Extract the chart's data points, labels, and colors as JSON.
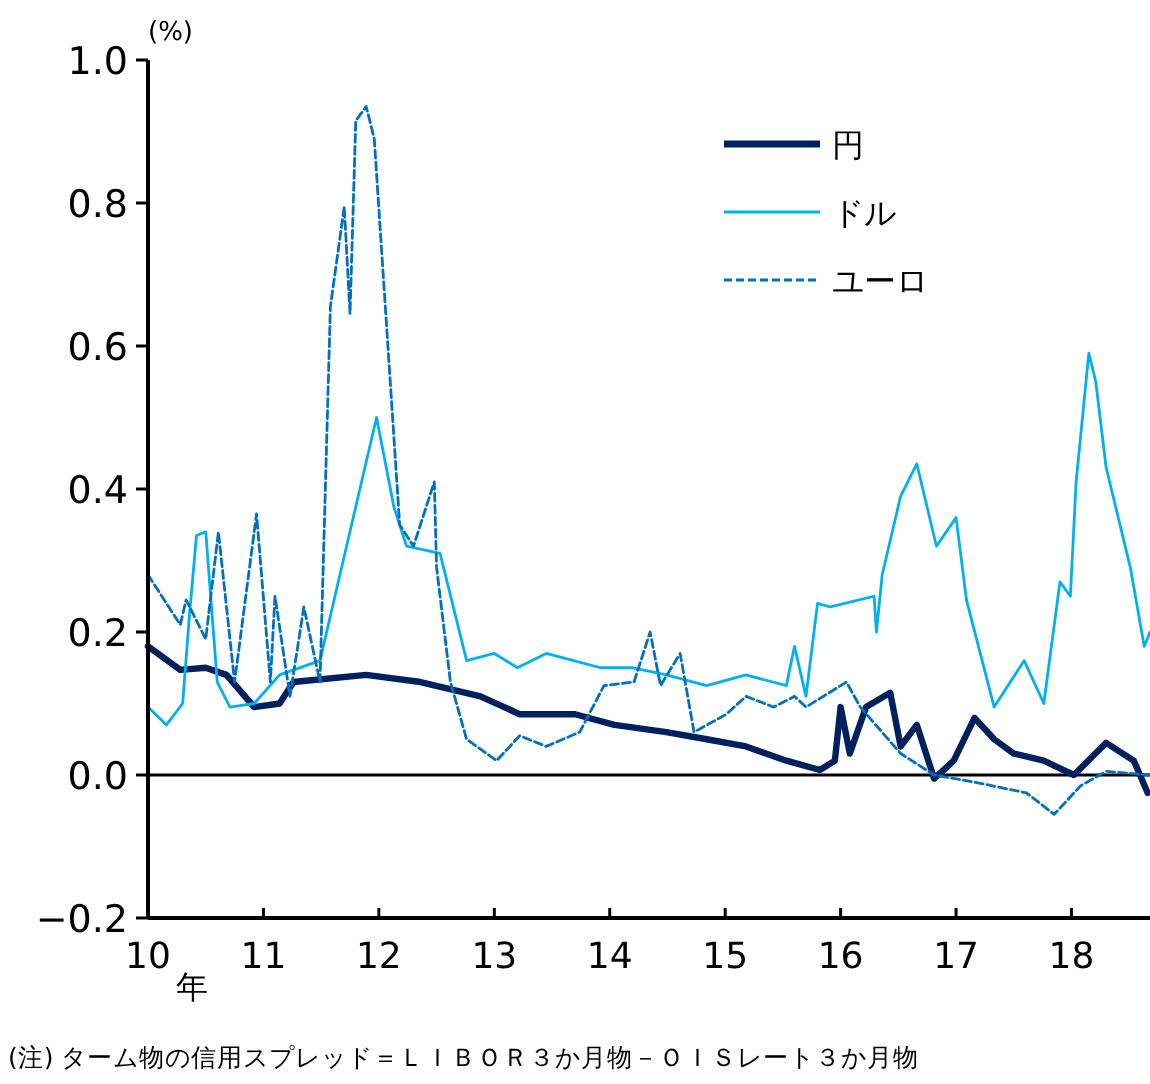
{
  "chart_data": {
    "type": "line",
    "ylabel": "(%)",
    "xlabel": "年",
    "xlim": [
      10,
      18.68
    ],
    "ylim": [
      -0.2,
      1.0
    ],
    "xticks": [
      10,
      11,
      12,
      13,
      14,
      15,
      16,
      17,
      18
    ],
    "yticks": [
      {
        "value": -0.2,
        "label": "−0.2"
      },
      {
        "value": 0,
        "label": "0.0"
      },
      {
        "value": 0.2,
        "label": "0.2"
      },
      {
        "value": 0.4,
        "label": "0.4"
      },
      {
        "value": 0.6,
        "label": "0.6"
      },
      {
        "value": 0.8,
        "label": "0.8"
      },
      {
        "value": 1.0,
        "label": "1.0"
      }
    ],
    "grid": false,
    "legend": "top right",
    "ref_lines": [
      {
        "axis": "y",
        "value": 0,
        "color": "#000000",
        "line_style": "solid"
      }
    ],
    "series": [
      {
        "name": "円",
        "color": "#002060",
        "line_style": "solid",
        "x": [
          10,
          10.28,
          10.5,
          10.68,
          10.92,
          11.14,
          11.26,
          11.89,
          12.36,
          12.88,
          13.22,
          13.7,
          14.04,
          14.49,
          14.84,
          15.18,
          15.53,
          15.82,
          15.95,
          16.0,
          16.08,
          16.22,
          16.43,
          16.52,
          16.66,
          16.81,
          16.98,
          17.16,
          17.33,
          17.5,
          17.76,
          18.02,
          18.3,
          18.54,
          18.66
        ],
        "values": [
          0.18,
          0.147,
          0.15,
          0.14,
          0.095,
          0.1,
          0.13,
          0.14,
          0.13,
          0.11,
          0.085,
          0.085,
          0.07,
          0.06,
          0.05,
          0.04,
          0.02,
          0.007,
          0.02,
          0.095,
          0.03,
          0.095,
          0.115,
          0.04,
          0.07,
          -0.005,
          0.02,
          0.08,
          0.05,
          0.03,
          0.02,
          0.0,
          0.045,
          0.02,
          -0.025
        ]
      },
      {
        "name": "ドル",
        "color": "#00b0f0",
        "line_style": "solid",
        "x": [
          10,
          10.16,
          10.3,
          10.36,
          10.42,
          10.5,
          10.6,
          10.71,
          10.92,
          11.14,
          11.49,
          11.72,
          11.98,
          12.13,
          12.24,
          12.53,
          12.76,
          13.0,
          13.2,
          13.45,
          13.92,
          14.2,
          14.49,
          14.84,
          15.18,
          15.53,
          15.6,
          15.7,
          15.8,
          15.91,
          16.29,
          16.31,
          16.36,
          16.52,
          16.66,
          16.83,
          17.0,
          17.09,
          17.33,
          17.59,
          17.76,
          17.9,
          17.99,
          18.04,
          18.15,
          18.21,
          18.3,
          18.51,
          18.63,
          18.68
        ],
        "values": [
          0.095,
          0.07,
          0.1,
          0.225,
          0.335,
          0.34,
          0.13,
          0.095,
          0.1,
          0.14,
          0.16,
          0.32,
          0.5,
          0.375,
          0.32,
          0.31,
          0.16,
          0.17,
          0.15,
          0.17,
          0.15,
          0.15,
          0.14,
          0.125,
          0.14,
          0.125,
          0.18,
          0.11,
          0.24,
          0.235,
          0.25,
          0.2,
          0.28,
          0.39,
          0.435,
          0.32,
          0.36,
          0.245,
          0.095,
          0.16,
          0.1,
          0.27,
          0.25,
          0.41,
          0.59,
          0.55,
          0.43,
          0.29,
          0.18,
          0.2
        ]
      },
      {
        "name": "ユーロ",
        "color": "#0070c0",
        "line_style": "dashed",
        "x": [
          10,
          10.28,
          10.33,
          10.5,
          10.61,
          10.75,
          10.94,
          11.06,
          11.1,
          11.23,
          11.35,
          11.49,
          11.58,
          11.7,
          11.75,
          11.8,
          11.89,
          11.96,
          12.18,
          12.3,
          12.48,
          12.5,
          12.62,
          12.76,
          13.02,
          13.22,
          13.45,
          13.74,
          13.95,
          14.21,
          14.35,
          14.44,
          14.61,
          14.73,
          15.01,
          15.18,
          15.42,
          15.6,
          15.7,
          16.05,
          16.17,
          16.52,
          16.81,
          17.16,
          17.61,
          17.85,
          18.08,
          18.3,
          18.68
        ],
        "values": [
          0.28,
          0.21,
          0.245,
          0.19,
          0.34,
          0.13,
          0.365,
          0.13,
          0.25,
          0.11,
          0.235,
          0.13,
          0.655,
          0.795,
          0.645,
          0.915,
          0.935,
          0.89,
          0.35,
          0.32,
          0.41,
          0.29,
          0.13,
          0.05,
          0.02,
          0.055,
          0.04,
          0.06,
          0.125,
          0.13,
          0.2,
          0.125,
          0.17,
          0.06,
          0.085,
          0.11,
          0.095,
          0.11,
          0.095,
          0.13,
          0.095,
          0.03,
          0.0,
          -0.01,
          -0.025,
          -0.055,
          -0.015,
          0.005,
          0.0
        ]
      }
    ],
    "annotations": [
      "(注) ターム物の信用スプレッド＝ＬＩＢＯＲ３か月物－ＯＩＳレート３か月物"
    ]
  }
}
